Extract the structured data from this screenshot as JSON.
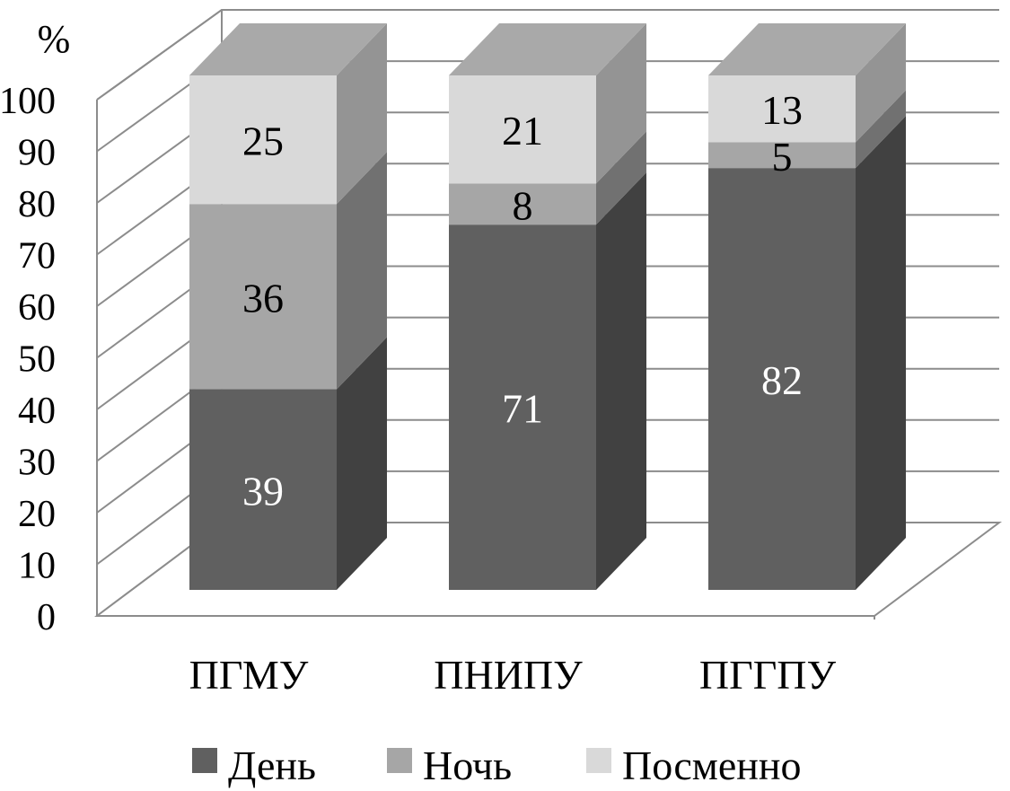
{
  "chart_data": {
    "type": "bar",
    "stacked": true,
    "three_d": true,
    "title": "",
    "xlabel": "",
    "ylabel": "%",
    "ylim": [
      0,
      100
    ],
    "yticks": [
      0,
      10,
      20,
      30,
      40,
      50,
      60,
      70,
      80,
      90,
      100
    ],
    "grid": true,
    "legend_position": "bottom",
    "categories": [
      "ПГМУ",
      "ПНИПУ",
      "ПГГПУ"
    ],
    "series": [
      {
        "name": "День",
        "values": [
          39,
          71,
          82
        ],
        "color": "#606060",
        "label_color": "#ffffff"
      },
      {
        "name": "Ночь",
        "values": [
          36,
          8,
          5
        ],
        "color": "#a6a6a6",
        "label_color": "#000000"
      },
      {
        "name": "Посменно",
        "values": [
          25,
          21,
          13
        ],
        "color": "#d9d9d9",
        "label_color": "#000000"
      }
    ]
  }
}
